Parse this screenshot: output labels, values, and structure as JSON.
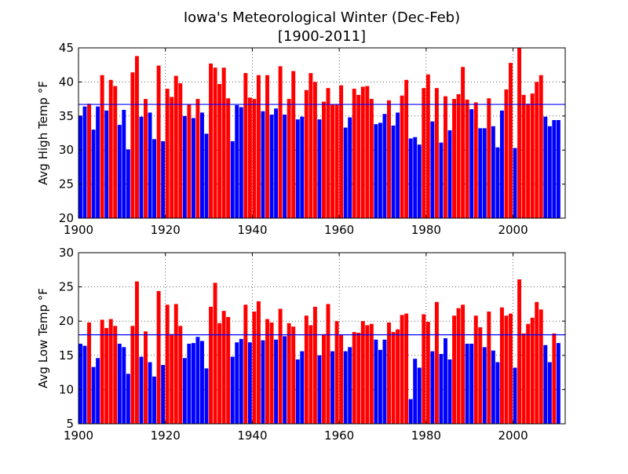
{
  "figure": {
    "title_line1": "Iowa's Meteorological Winter (Dec-Feb)",
    "title_line2": "[1900-2011]"
  },
  "colors": {
    "above": "#ff0000",
    "below": "#0000ff",
    "average_line": "#0000ff",
    "grid": "#000000"
  },
  "chart_data": [
    {
      "type": "bar",
      "ylabel": "Avg High Temp °F",
      "xlim": [
        1900,
        2012
      ],
      "ylim": [
        20,
        45
      ],
      "xticks": [
        1900,
        1920,
        1940,
        1960,
        1980,
        2000
      ],
      "yticks": [
        20,
        25,
        30,
        35,
        40,
        45
      ],
      "grid": true,
      "average": 36.7,
      "x": [
        1900,
        1901,
        1902,
        1903,
        1904,
        1905,
        1906,
        1907,
        1908,
        1909,
        1910,
        1911,
        1912,
        1913,
        1914,
        1915,
        1916,
        1917,
        1918,
        1919,
        1920,
        1921,
        1922,
        1923,
        1924,
        1925,
        1926,
        1927,
        1928,
        1929,
        1930,
        1931,
        1932,
        1933,
        1934,
        1935,
        1936,
        1937,
        1938,
        1939,
        1940,
        1941,
        1942,
        1943,
        1944,
        1945,
        1946,
        1947,
        1948,
        1949,
        1950,
        1951,
        1952,
        1953,
        1954,
        1955,
        1956,
        1957,
        1958,
        1959,
        1960,
        1961,
        1962,
        1963,
        1964,
        1965,
        1966,
        1967,
        1968,
        1969,
        1970,
        1971,
        1972,
        1973,
        1974,
        1975,
        1976,
        1977,
        1978,
        1979,
        1980,
        1981,
        1982,
        1983,
        1984,
        1985,
        1986,
        1987,
        1988,
        1989,
        1990,
        1991,
        1992,
        1993,
        1994,
        1995,
        1996,
        1997,
        1998,
        1999,
        2000,
        2001,
        2002,
        2003,
        2004,
        2005,
        2006,
        2007,
        2008,
        2009,
        2010,
        2011
      ],
      "values": [
        35.0,
        36.4,
        36.8,
        33.0,
        36.4,
        41.0,
        35.8,
        40.3,
        39.4,
        33.7,
        35.9,
        30.1,
        41.4,
        43.8,
        34.9,
        37.5,
        35.5,
        31.6,
        42.4,
        31.3,
        39.0,
        37.8,
        40.9,
        39.8,
        35.0,
        36.7,
        34.7,
        37.5,
        35.5,
        32.4,
        42.7,
        42.1,
        39.7,
        42.1,
        37.6,
        31.3,
        36.6,
        36.3,
        41.3,
        37.7,
        37.5,
        41.0,
        35.7,
        41.0,
        35.2,
        36.1,
        42.3,
        35.2,
        37.5,
        41.6,
        34.5,
        34.9,
        38.8,
        41.3,
        40.0,
        34.5,
        37.1,
        39.1,
        36.7,
        36.7,
        39.5,
        33.3,
        34.8,
        39.0,
        38.1,
        39.3,
        39.4,
        37.5,
        33.8,
        34.0,
        35.3,
        37.3,
        33.6,
        35.5,
        38.0,
        40.3,
        31.7,
        31.9,
        30.8,
        39.1,
        41.1,
        34.2,
        39.1,
        31.1,
        37.9,
        32.9,
        37.5,
        38.2,
        42.2,
        37.4,
        36.0,
        37.0,
        33.2,
        33.2,
        37.6,
        33.5,
        30.4,
        35.8,
        38.9,
        42.8,
        30.3,
        45.3,
        38.1,
        36.8,
        38.3,
        40.0,
        41.0,
        34.9,
        33.5,
        34.4,
        34.4,
        null
      ]
    },
    {
      "type": "bar",
      "ylabel": "Avg Low Temp °F",
      "xlim": [
        1900,
        2012
      ],
      "ylim": [
        5,
        30
      ],
      "xticks": [
        1900,
        1920,
        1940,
        1960,
        1980,
        2000
      ],
      "yticks": [
        5,
        10,
        15,
        20,
        25,
        30
      ],
      "grid": true,
      "average": 18.0,
      "x": [
        1900,
        1901,
        1902,
        1903,
        1904,
        1905,
        1906,
        1907,
        1908,
        1909,
        1910,
        1911,
        1912,
        1913,
        1914,
        1915,
        1916,
        1917,
        1918,
        1919,
        1920,
        1921,
        1922,
        1923,
        1924,
        1925,
        1926,
        1927,
        1928,
        1929,
        1930,
        1931,
        1932,
        1933,
        1934,
        1935,
        1936,
        1937,
        1938,
        1939,
        1940,
        1941,
        1942,
        1943,
        1944,
        1945,
        1946,
        1947,
        1948,
        1949,
        1950,
        1951,
        1952,
        1953,
        1954,
        1955,
        1956,
        1957,
        1958,
        1959,
        1960,
        1961,
        1962,
        1963,
        1964,
        1965,
        1966,
        1967,
        1968,
        1969,
        1970,
        1971,
        1972,
        1973,
        1974,
        1975,
        1976,
        1977,
        1978,
        1979,
        1980,
        1981,
        1982,
        1983,
        1984,
        1985,
        1986,
        1987,
        1988,
        1989,
        1990,
        1991,
        1992,
        1993,
        1994,
        1995,
        1996,
        1997,
        1998,
        1999,
        2000,
        2001,
        2002,
        2003,
        2004,
        2005,
        2006,
        2007,
        2008,
        2009,
        2010,
        2011
      ],
      "values": [
        16.7,
        16.4,
        19.8,
        13.3,
        14.6,
        20.2,
        19.0,
        20.3,
        19.3,
        16.7,
        16.2,
        12.3,
        19.3,
        25.8,
        14.8,
        18.5,
        14.0,
        11.9,
        24.4,
        13.6,
        22.4,
        18.1,
        22.5,
        19.3,
        14.6,
        16.7,
        16.8,
        17.7,
        17.1,
        13.1,
        22.1,
        25.6,
        19.7,
        21.5,
        20.6,
        14.8,
        16.9,
        17.4,
        22.4,
        16.9,
        21.4,
        22.9,
        17.2,
        20.3,
        19.8,
        17.3,
        21.8,
        17.8,
        19.7,
        19.2,
        14.4,
        15.6,
        20.8,
        19.4,
        22.1,
        15.0,
        18.1,
        22.5,
        15.6,
        20.0,
        18.0,
        15.6,
        16.2,
        18.4,
        18.3,
        20.0,
        19.4,
        19.6,
        17.3,
        15.8,
        17.3,
        19.8,
        18.4,
        18.8,
        20.9,
        21.1,
        8.6,
        14.5,
        13.2,
        21.0,
        19.9,
        15.6,
        22.8,
        15.2,
        17.5,
        14.4,
        20.8,
        21.9,
        22.4,
        16.7,
        16.7,
        20.8,
        19.1,
        16.2,
        21.4,
        15.7,
        14.0,
        22.0,
        20.8,
        21.1,
        13.2,
        26.1,
        18.2,
        19.6,
        20.5,
        22.8,
        21.7,
        16.5,
        14.0,
        18.2,
        16.8,
        null
      ]
    }
  ]
}
